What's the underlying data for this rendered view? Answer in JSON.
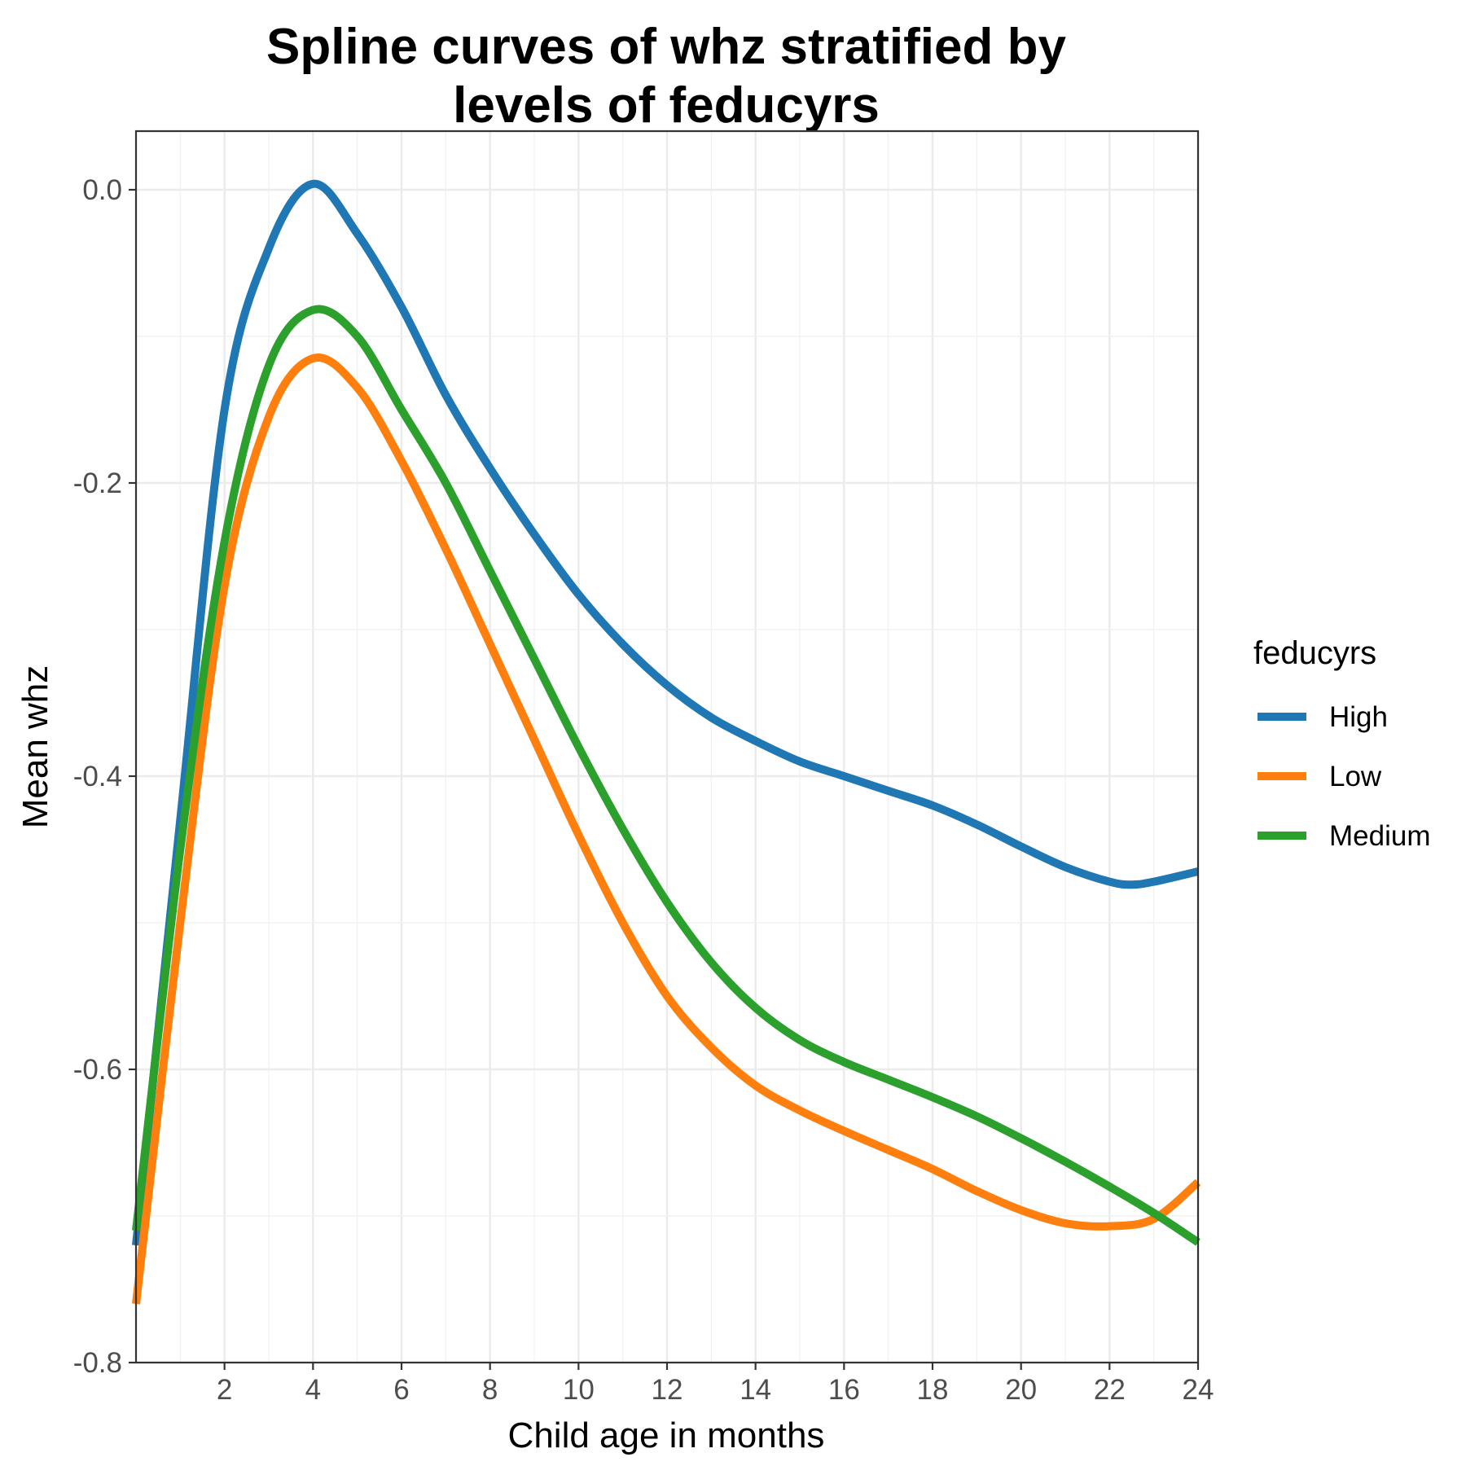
{
  "chart_data": {
    "type": "line",
    "title_lines": [
      "Spline curves of whz stratified by",
      "levels of feducyrs"
    ],
    "xlabel": "Child age in months",
    "ylabel": "Mean whz",
    "xlim": [
      0,
      24
    ],
    "ylim": [
      -0.8,
      0.04
    ],
    "x_ticks": [
      2,
      4,
      6,
      8,
      10,
      12,
      14,
      16,
      18,
      20,
      22,
      24
    ],
    "x_tick_labels": [
      "2",
      "4",
      "6",
      "8",
      "10",
      "12",
      "14",
      "16",
      "18",
      "20",
      "22",
      "24"
    ],
    "y_ticks": [
      -0.8,
      -0.6,
      -0.4,
      -0.2,
      0.0
    ],
    "y_tick_labels": [
      "-0.8",
      "-0.6",
      "-0.4",
      "-0.2",
      "0.0"
    ],
    "grid": true,
    "legend": {
      "title": "feducyrs",
      "position": "right"
    },
    "series": [
      {
        "name": "High",
        "color": "#1f77b4",
        "x": [
          0,
          1,
          2,
          3,
          4,
          5,
          6,
          7,
          8,
          9,
          10,
          11,
          12,
          13,
          14,
          15,
          16,
          17,
          18,
          19,
          20,
          21,
          22,
          22.5,
          23,
          24
        ],
        "y": [
          -0.72,
          -0.43,
          -0.15,
          -0.04,
          0.004,
          -0.03,
          -0.08,
          -0.14,
          -0.19,
          -0.235,
          -0.276,
          -0.31,
          -0.338,
          -0.36,
          -0.376,
          -0.39,
          -0.4,
          -0.41,
          -0.42,
          -0.433,
          -0.448,
          -0.462,
          -0.472,
          -0.474,
          -0.472,
          -0.465
        ]
      },
      {
        "name": "Low",
        "color": "#ff7f0e",
        "x": [
          0,
          1,
          2,
          3,
          4,
          5,
          6,
          7,
          8,
          9,
          10,
          11,
          12,
          13,
          14,
          15,
          16,
          17,
          18,
          19,
          20,
          21,
          22,
          23,
          24
        ],
        "y": [
          -0.76,
          -0.5,
          -0.27,
          -0.155,
          -0.115,
          -0.135,
          -0.185,
          -0.245,
          -0.31,
          -0.375,
          -0.44,
          -0.5,
          -0.55,
          -0.585,
          -0.611,
          -0.628,
          -0.642,
          -0.655,
          -0.668,
          -0.683,
          -0.696,
          -0.705,
          -0.707,
          -0.702,
          -0.677
        ]
      },
      {
        "name": "Medium",
        "color": "#2ca02c",
        "x": [
          0,
          1,
          2,
          3,
          4,
          5,
          6,
          7,
          8,
          9,
          10,
          11,
          12,
          13,
          14,
          15,
          16,
          17,
          18,
          19,
          20,
          21,
          22,
          23,
          24
        ],
        "y": [
          -0.71,
          -0.45,
          -0.24,
          -0.12,
          -0.082,
          -0.1,
          -0.15,
          -0.2,
          -0.26,
          -0.32,
          -0.38,
          -0.436,
          -0.486,
          -0.527,
          -0.558,
          -0.58,
          -0.595,
          -0.607,
          -0.619,
          -0.632,
          -0.647,
          -0.663,
          -0.68,
          -0.698,
          -0.718
        ]
      }
    ]
  }
}
